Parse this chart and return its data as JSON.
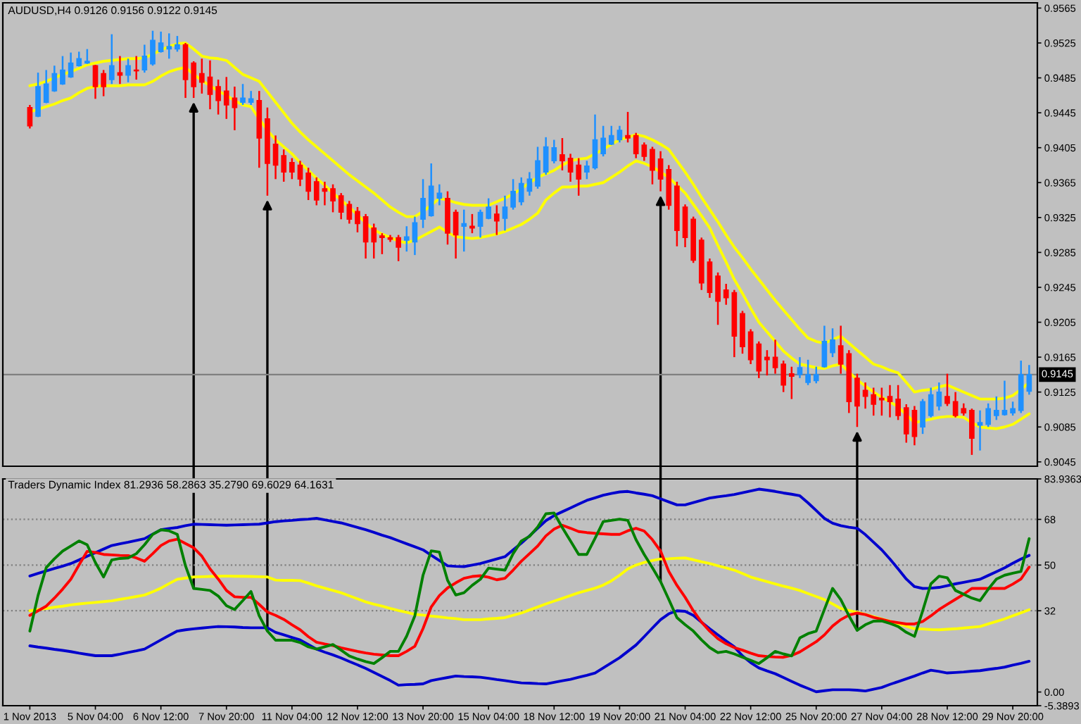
{
  "chart_data": [
    {
      "type": "candlestick",
      "title": "AUDUSD,H4 0.9126 0.9156 0.9122 0.9145",
      "categories": [
        null,
        null,
        null,
        null,
        null,
        null,
        null,
        null,
        null,
        null,
        null,
        null,
        null,
        null,
        null,
        null,
        null,
        null,
        null,
        null,
        null,
        null,
        null,
        null,
        null,
        null,
        null,
        null,
        null,
        null,
        null,
        null,
        null,
        null,
        null,
        null,
        null,
        null,
        null,
        null,
        null,
        null,
        null,
        null,
        null,
        null,
        null,
        null,
        null,
        null,
        null,
        null,
        null,
        null,
        null,
        null,
        null,
        null,
        null,
        null,
        null,
        null,
        null,
        null,
        null,
        null,
        null,
        null,
        null,
        null,
        null,
        null,
        null,
        null,
        null,
        null,
        null,
        null,
        null,
        null,
        null,
        null,
        null,
        null,
        null,
        null,
        null,
        null,
        null,
        null,
        null,
        null,
        null,
        null,
        null,
        null,
        null,
        null,
        null,
        null,
        null,
        null,
        null,
        null,
        null,
        null,
        null,
        null,
        null,
        null,
        null,
        null,
        null,
        null,
        null,
        null,
        null,
        null,
        null,
        null,
        null,
        null,
        null
      ],
      "ohlc": [
        [
          0.9451,
          0.9454,
          0.9427,
          0.943
        ],
        [
          0.9441,
          0.9491,
          0.944,
          0.9475
        ],
        [
          0.9457,
          0.9494,
          0.9456,
          0.9478
        ],
        [
          0.947,
          0.9499,
          0.9469,
          0.949
        ],
        [
          0.9478,
          0.951,
          0.9477,
          0.9494
        ],
        [
          0.9486,
          0.9514,
          0.9485,
          0.9502
        ],
        [
          0.9499,
          0.9515,
          0.9498,
          0.9507
        ],
        [
          0.9502,
          0.9518,
          0.9501,
          0.9504
        ],
        [
          0.9499,
          0.95,
          0.9461,
          0.9475
        ],
        [
          0.949,
          0.9494,
          0.9464,
          0.9475
        ],
        [
          0.9483,
          0.9535,
          0.9478,
          0.9499
        ],
        [
          0.9491,
          0.951,
          0.9478,
          0.9488
        ],
        [
          0.9488,
          0.9507,
          0.948,
          0.9499
        ],
        [
          0.9494,
          0.951,
          0.9483,
          0.9493
        ],
        [
          0.9494,
          0.9523,
          0.9491,
          0.951
        ],
        [
          0.9501,
          0.9539,
          0.9499,
          0.9528
        ],
        [
          0.9515,
          0.9538,
          0.9514,
          0.9525
        ],
        [
          0.9518,
          0.9536,
          0.9507,
          0.9521
        ],
        [
          0.9518,
          0.9533,
          0.9515,
          0.9523
        ],
        [
          0.9523,
          0.9525,
          0.9462,
          0.9483
        ],
        [
          0.9502,
          0.9504,
          0.9462,
          0.9475
        ],
        [
          0.949,
          0.9507,
          0.9467,
          0.948
        ],
        [
          0.9486,
          0.9505,
          0.9449,
          0.9466
        ],
        [
          0.9475,
          0.9483,
          0.9443,
          0.9459
        ],
        [
          0.947,
          0.9486,
          0.9438,
          0.9454
        ],
        [
          0.9462,
          0.9475,
          0.9425,
          0.9451
        ],
        [
          0.9457,
          0.9478,
          0.9454,
          0.9462
        ],
        [
          0.9457,
          0.947,
          0.9454,
          0.9461
        ],
        [
          0.9459,
          0.947,
          0.9382,
          0.9416
        ],
        [
          0.9438,
          0.9451,
          0.935,
          0.9387
        ],
        [
          0.9409,
          0.9419,
          0.9369,
          0.9385
        ],
        [
          0.9396,
          0.9403,
          0.9366,
          0.9377
        ],
        [
          0.9388,
          0.9393,
          0.9369,
          0.9377
        ],
        [
          0.9385,
          0.939,
          0.9361,
          0.9369
        ],
        [
          0.9376,
          0.9382,
          0.9345,
          0.9355
        ],
        [
          0.9366,
          0.9371,
          0.9339,
          0.9345
        ],
        [
          0.9358,
          0.9366,
          0.9339,
          0.9355
        ],
        [
          0.9358,
          0.9363,
          0.9331,
          0.9344
        ],
        [
          0.935,
          0.9353,
          0.9323,
          0.9331
        ],
        [
          0.934,
          0.9344,
          0.9318,
          0.9323
        ],
        [
          0.9332,
          0.9337,
          0.9308,
          0.9318
        ],
        [
          0.9326,
          0.9329,
          0.9278,
          0.9297
        ],
        [
          0.9313,
          0.9318,
          0.9278,
          0.9297
        ],
        [
          0.9304,
          0.9307,
          0.9283,
          0.9302
        ],
        [
          0.9302,
          0.9305,
          0.9297,
          0.93
        ],
        [
          0.9302,
          0.9305,
          0.9275,
          0.9291
        ],
        [
          0.9299,
          0.9315,
          0.9286,
          0.9303
        ],
        [
          0.9297,
          0.9326,
          0.9282,
          0.9319
        ],
        [
          0.9323,
          0.9369,
          0.9313,
          0.9347
        ],
        [
          0.9327,
          0.9387,
          0.9326,
          0.9361
        ],
        [
          0.9347,
          0.9363,
          0.9339,
          0.9353
        ],
        [
          0.9347,
          0.9355,
          0.9294,
          0.9307
        ],
        [
          0.9331,
          0.9334,
          0.9278,
          0.9305
        ],
        [
          0.9315,
          0.9334,
          0.9286,
          0.9318
        ],
        [
          0.9315,
          0.9329,
          0.9307,
          0.9313
        ],
        [
          0.9315,
          0.9334,
          0.9302,
          0.9331
        ],
        [
          0.9324,
          0.9347,
          0.9323,
          0.9337
        ],
        [
          0.9329,
          0.9339,
          0.9305,
          0.9321
        ],
        [
          0.9324,
          0.935,
          0.931,
          0.9337
        ],
        [
          0.9337,
          0.9369,
          0.9334,
          0.9355
        ],
        [
          0.9343,
          0.9371,
          0.9339,
          0.9364
        ],
        [
          0.9355,
          0.9377,
          0.935,
          0.9369
        ],
        [
          0.9361,
          0.9406,
          0.9358,
          0.939
        ],
        [
          0.9377,
          0.9417,
          0.9374,
          0.9406
        ],
        [
          0.939,
          0.9414,
          0.9387,
          0.9405
        ],
        [
          0.9397,
          0.9416,
          0.9379,
          0.939
        ],
        [
          0.9393,
          0.9398,
          0.9366,
          0.9377
        ],
        [
          0.9385,
          0.9393,
          0.935,
          0.9369
        ],
        [
          0.9377,
          0.939,
          0.9369,
          0.9384
        ],
        [
          0.9382,
          0.9443,
          0.938,
          0.9414
        ],
        [
          0.9398,
          0.943,
          0.9395,
          0.9416
        ],
        [
          0.9409,
          0.943,
          0.9408,
          0.9419
        ],
        [
          0.9414,
          0.943,
          0.9411,
          0.9425
        ],
        [
          0.9419,
          0.9446,
          0.9411,
          0.9416
        ],
        [
          0.9419,
          0.9422,
          0.9393,
          0.9398
        ],
        [
          0.9408,
          0.9411,
          0.939,
          0.9395
        ],
        [
          0.9403,
          0.9406,
          0.9363,
          0.9379
        ],
        [
          0.9392,
          0.9401,
          0.9355,
          0.9369
        ],
        [
          0.938,
          0.9385,
          0.9334,
          0.9339
        ],
        [
          0.9361,
          0.9366,
          0.9292,
          0.931
        ],
        [
          0.9337,
          0.934,
          0.9291,
          0.9302
        ],
        [
          0.9323,
          0.9326,
          0.9273,
          0.9276
        ],
        [
          0.9299,
          0.9302,
          0.9242,
          0.925
        ],
        [
          0.9274,
          0.9278,
          0.9233,
          0.9239
        ],
        [
          0.9258,
          0.9262,
          0.9202,
          0.9229
        ],
        [
          0.9242,
          0.9249,
          0.9225,
          0.9233
        ],
        [
          0.9239,
          0.9242,
          0.9165,
          0.9189
        ],
        [
          0.9215,
          0.9218,
          0.9169,
          0.9177
        ],
        [
          0.9194,
          0.9197,
          0.9157,
          0.9162
        ],
        [
          0.918,
          0.9183,
          0.9141,
          0.9149
        ],
        [
          0.9165,
          0.9173,
          0.9144,
          0.9162
        ],
        [
          0.9165,
          0.9185,
          0.9146,
          0.9153
        ],
        [
          0.9157,
          0.9161,
          0.9125,
          0.9133
        ],
        [
          0.9146,
          0.9154,
          0.9117,
          0.9143
        ],
        [
          0.9145,
          0.9165,
          0.9141,
          0.9153
        ],
        [
          0.9136,
          0.9162,
          0.9133,
          0.9145
        ],
        [
          0.9138,
          0.9154,
          0.9135,
          0.9145
        ],
        [
          0.9154,
          0.9201,
          0.9153,
          0.9183
        ],
        [
          0.917,
          0.9198,
          0.9165,
          0.9185
        ],
        [
          0.9178,
          0.9201,
          0.9146,
          0.9157
        ],
        [
          0.9169,
          0.9173,
          0.9101,
          0.9114
        ],
        [
          0.9141,
          0.9146,
          0.9085,
          0.9109
        ],
        [
          0.9127,
          0.9136,
          0.9106,
          0.912
        ],
        [
          0.9122,
          0.913,
          0.9098,
          0.9111
        ],
        [
          0.9118,
          0.913,
          0.9098,
          0.9116
        ],
        [
          0.912,
          0.9133,
          0.9096,
          0.9114
        ],
        [
          0.9117,
          0.9133,
          0.9093,
          0.9098
        ],
        [
          0.9107,
          0.9111,
          0.9067,
          0.9077
        ],
        [
          0.9104,
          0.9109,
          0.9064,
          0.9074
        ],
        [
          0.9085,
          0.9117,
          0.9077,
          0.9114
        ],
        [
          0.9098,
          0.913,
          0.9096,
          0.9122
        ],
        [
          0.9109,
          0.9136,
          0.9104,
          0.9125
        ],
        [
          0.912,
          0.9146,
          0.9109,
          0.9112
        ],
        [
          0.9114,
          0.9125,
          0.9096,
          0.9098
        ],
        [
          0.9106,
          0.9112,
          0.9098,
          0.9101
        ],
        [
          0.9104,
          0.9106,
          0.9053,
          0.9072
        ],
        [
          0.9087,
          0.9104,
          0.9058,
          0.909
        ],
        [
          0.9088,
          0.9112,
          0.9085,
          0.9106
        ],
        [
          0.9098,
          0.912,
          0.9093,
          0.9104
        ],
        [
          0.9099,
          0.9138,
          0.9098,
          0.9104
        ],
        [
          0.9101,
          0.9114,
          0.9098,
          0.9106
        ],
        [
          0.9104,
          0.9161,
          0.9101,
          0.9145
        ],
        [
          0.9126,
          0.9156,
          0.9122,
          0.9145
        ]
      ],
      "colors": [
        "#ff0000",
        "#1e90ff",
        "#1e90ff",
        "#1e90ff",
        "#1e90ff",
        "#1e90ff",
        "#1e90ff",
        "#1e90ff",
        "#ff0000",
        "#ff0000",
        "#1e90ff",
        "#ff0000",
        "#1e90ff",
        "#ff0000",
        "#1e90ff",
        "#1e90ff",
        "#1e90ff",
        "#1e90ff",
        "#1e90ff",
        "#ff0000",
        "#ff0000",
        "#ff0000",
        "#ff0000",
        "#ff0000",
        "#ff0000",
        "#ff0000",
        "#1e90ff",
        "#1e90ff",
        "#ff0000",
        "#ff0000",
        "#ff0000",
        "#ff0000",
        "#ff0000",
        "#ff0000",
        "#ff0000",
        "#ff0000",
        "#ff0000",
        "#ff0000",
        "#ff0000",
        "#ff0000",
        "#ff0000",
        "#ff0000",
        "#ff0000",
        "#ff0000",
        "#ff0000",
        "#ff0000",
        "#1e90ff",
        "#1e90ff",
        "#1e90ff",
        "#1e90ff",
        "#1e90ff",
        "#ff0000",
        "#ff0000",
        "#1e90ff",
        "#ff0000",
        "#1e90ff",
        "#1e90ff",
        "#ff0000",
        "#1e90ff",
        "#1e90ff",
        "#1e90ff",
        "#1e90ff",
        "#1e90ff",
        "#1e90ff",
        "#1e90ff",
        "#ff0000",
        "#ff0000",
        "#ff0000",
        "#1e90ff",
        "#1e90ff",
        "#1e90ff",
        "#1e90ff",
        "#1e90ff",
        "#ff0000",
        "#ff0000",
        "#ff0000",
        "#ff0000",
        "#ff0000",
        "#ff0000",
        "#ff0000",
        "#ff0000",
        "#ff0000",
        "#ff0000",
        "#ff0000",
        "#ff0000",
        "#ff0000",
        "#ff0000",
        "#ff0000",
        "#ff0000",
        "#ff0000",
        "#ff0000",
        "#ff0000",
        "#ff0000",
        "#ff0000",
        "#1e90ff",
        "#1e90ff",
        "#1e90ff",
        "#1e90ff",
        "#1e90ff",
        "#ff0000",
        "#ff0000",
        "#ff0000",
        "#ff0000",
        "#ff0000",
        "#ff0000",
        "#ff0000",
        "#ff0000",
        "#ff0000",
        "#ff0000",
        "#1e90ff",
        "#1e90ff",
        "#1e90ff",
        "#ff0000",
        "#ff0000",
        "#ff0000",
        "#ff0000",
        "#1e90ff",
        "#1e90ff",
        "#1e90ff",
        "#1e90ff",
        "#1e90ff",
        "#1e90ff",
        "#1e90ff"
      ],
      "series": [
        {
          "type": "line",
          "color": "#ffff00",
          "values": [
            0.9476,
            0.9478,
            0.9481,
            0.9485,
            0.9489,
            0.9492,
            0.9496,
            0.95,
            0.9502,
            0.9504,
            0.9505,
            0.9506,
            0.9507,
            0.9507,
            0.9508,
            0.9512,
            0.9517,
            0.9521,
            0.9524,
            0.9525,
            0.9518,
            0.951,
            0.9508,
            0.9507,
            0.9505,
            0.9497,
            0.9489,
            0.9485,
            0.9481,
            0.9469,
            0.9457,
            0.9445,
            0.9433,
            0.9423,
            0.9414,
            0.9406,
            0.9398,
            0.939,
            0.9382,
            0.9374,
            0.9367,
            0.936,
            0.9353,
            0.9345,
            0.9337,
            0.9331,
            0.9326,
            0.9326,
            0.9332,
            0.9339,
            0.9347,
            0.9345,
            0.9342,
            0.934,
            0.9339,
            0.9339,
            0.9339,
            0.9343,
            0.9347,
            0.9352,
            0.9358,
            0.9365,
            0.9371,
            0.9375,
            0.9379,
            0.9385,
            0.939,
            0.9392,
            0.9393,
            0.9398,
            0.9403,
            0.9409,
            0.9414,
            0.9417,
            0.942,
            0.9418,
            0.9414,
            0.9409,
            0.9403,
            0.939,
            0.9377,
            0.9363,
            0.9348,
            0.9334,
            0.932,
            0.9305,
            0.9291,
            0.9279,
            0.9266,
            0.9254,
            0.9242,
            0.923,
            0.9219,
            0.9208,
            0.9197,
            0.9187,
            0.9183,
            0.9181,
            0.9185,
            0.9189,
            0.9181,
            0.9173,
            0.9165,
            0.9157,
            0.9154,
            0.915,
            0.9147,
            0.9136,
            0.9125,
            0.9127,
            0.9128,
            0.9131,
            0.9133,
            0.9129,
            0.9125,
            0.9121,
            0.9117,
            0.9117,
            0.9117,
            0.9118,
            0.9121,
            0.9128,
            0.9136
          ]
        },
        {
          "type": "line",
          "color": "#ffff00",
          "values": [
            0.9446,
            0.9449,
            0.9452,
            0.9455,
            0.9459,
            0.9462,
            0.9468,
            0.9473,
            0.9475,
            0.9476,
            0.9476,
            0.9476,
            0.9477,
            0.9477,
            0.9477,
            0.9481,
            0.9487,
            0.9492,
            0.9495,
            0.9497,
            0.9489,
            0.9482,
            0.9476,
            0.947,
            0.9465,
            0.9459,
            0.9454,
            0.9452,
            0.9438,
            0.9425,
            0.9414,
            0.9406,
            0.9398,
            0.9388,
            0.9379,
            0.937,
            0.9362,
            0.9353,
            0.9345,
            0.9337,
            0.9328,
            0.9319,
            0.9311,
            0.9306,
            0.9302,
            0.9298,
            0.9296,
            0.9299,
            0.9304,
            0.9309,
            0.9314,
            0.9308,
            0.9303,
            0.9302,
            0.9301,
            0.9302,
            0.9304,
            0.9306,
            0.9309,
            0.9313,
            0.9317,
            0.9323,
            0.933,
            0.9345,
            0.9353,
            0.936,
            0.936,
            0.9361,
            0.9361,
            0.9363,
            0.9365,
            0.9371,
            0.9377,
            0.9384,
            0.939,
            0.9387,
            0.9383,
            0.9377,
            0.9371,
            0.9362,
            0.9353,
            0.934,
            0.9327,
            0.9313,
            0.9293,
            0.9274,
            0.9254,
            0.9238,
            0.9221,
            0.9205,
            0.9194,
            0.9183,
            0.9172,
            0.9164,
            0.9157,
            0.9155,
            0.9153,
            0.9152,
            0.9155,
            0.9157,
            0.9148,
            0.9139,
            0.9132,
            0.9125,
            0.9119,
            0.9114,
            0.9108,
            0.9099,
            0.909,
            0.9092,
            0.9094,
            0.9096,
            0.9097,
            0.9097,
            0.9096,
            0.909,
            0.9085,
            0.9084,
            0.9083,
            0.9085,
            0.9088,
            0.9094,
            0.91
          ]
        }
      ],
      "ylim": [
        0.904,
        0.9571
      ],
      "yticks": [
        0.9565,
        0.9525,
        0.9485,
        0.9445,
        0.9405,
        0.9365,
        0.9325,
        0.9285,
        0.9245,
        0.9205,
        0.9165,
        0.9125,
        0.9085,
        0.9045
      ],
      "ref_lines": [
        {
          "axis": "y",
          "value": 0.9145,
          "label": "0.9145",
          "color": "#808080",
          "line_style": "solid"
        }
      ],
      "tick_labels": "y"
    },
    {
      "type": "line",
      "title": "Traders Dynamic Index 81.2936 58.2863 35.2790 69.6029 64.1631",
      "categories": [
        "1 Nov 2013",
        null,
        null,
        null,
        null,
        null,
        null,
        null,
        "5 Nov 04:00",
        null,
        null,
        null,
        null,
        null,
        null,
        null,
        "6 Nov 12:00",
        null,
        null,
        null,
        null,
        null,
        null,
        null,
        "7 Nov 20:00",
        null,
        null,
        null,
        null,
        null,
        null,
        null,
        "11 Nov 04:00",
        null,
        null,
        null,
        null,
        null,
        null,
        null,
        "12 Nov 12:00",
        null,
        null,
        null,
        null,
        null,
        null,
        null,
        "13 Nov 20:00",
        null,
        null,
        null,
        null,
        null,
        null,
        null,
        "15 Nov 04:00",
        null,
        null,
        null,
        null,
        null,
        null,
        null,
        "18 Nov 12:00",
        null,
        null,
        null,
        null,
        null,
        null,
        null,
        "19 Nov 20:00",
        null,
        null,
        null,
        null,
        null,
        null,
        null,
        "21 Nov 04:00",
        null,
        null,
        null,
        null,
        null,
        null,
        null,
        "22 Nov 12:00",
        null,
        null,
        null,
        null,
        null,
        null,
        null,
        "25 Nov 20:00",
        null,
        null,
        null,
        null,
        null,
        null,
        null,
        "27 Nov 04:00",
        null,
        null,
        null,
        null,
        null,
        null,
        null,
        "28 Nov 12:00",
        null,
        null,
        null,
        null,
        null,
        null,
        null,
        "29 Nov 20:00",
        null,
        null
      ],
      "series": [
        {
          "type": "line",
          "color": "#0000cd",
          "values": [
            45.7,
            46.7,
            47.7,
            48.7,
            49.6,
            50.6,
            52.0,
            53.5,
            54.9,
            56.3,
            57.7,
            58.4,
            59.0,
            59.7,
            60.4,
            62.2,
            63.9,
            64.4,
            64.8,
            65.5,
            66.1,
            66.0,
            65.9,
            65.8,
            65.7,
            65.8,
            65.9,
            66.0,
            66.1,
            66.6,
            67.1,
            67.4,
            67.6,
            67.9,
            68.1,
            68.4,
            67.8,
            67.2,
            66.6,
            65.7,
            64.8,
            63.9,
            62.9,
            61.8,
            60.8,
            59.6,
            58.4,
            57.2,
            56.0,
            53.9,
            51.8,
            49.7,
            49.5,
            49.4,
            50.0,
            50.6,
            51.5,
            52.4,
            53.3,
            56.0,
            58.6,
            61.5,
            64.5,
            67.5,
            69.5,
            71.0,
            72.5,
            74.0,
            75.5,
            76.5,
            77.5,
            78.2,
            78.8,
            79.0,
            78.4,
            77.9,
            77.3,
            76.1,
            74.9,
            73.7,
            73.7,
            74.6,
            75.5,
            76.4,
            76.9,
            77.3,
            77.8,
            78.5,
            79.2,
            79.9,
            79.5,
            79.0,
            78.4,
            77.9,
            77.3,
            74.5,
            71.5,
            68.4,
            66.5,
            65.5,
            64.9,
            64.5,
            62.0,
            59.0,
            56.0,
            52.4,
            48.5,
            44.5,
            41.5,
            40.8,
            40.9,
            41.2,
            41.9,
            42.6,
            43.2,
            43.8,
            44.4,
            45.9,
            47.4,
            48.9,
            50.7,
            52.4,
            53.8
          ]
        },
        {
          "type": "line",
          "color": "#0000cd",
          "values": [
            18.2,
            17.7,
            17.3,
            16.8,
            16.4,
            15.9,
            15.3,
            14.8,
            14.3,
            14.3,
            14.3,
            14.9,
            15.6,
            16.2,
            16.9,
            18.7,
            20.5,
            22.3,
            24.0,
            24.5,
            24.9,
            25.2,
            25.5,
            25.8,
            25.7,
            25.6,
            25.4,
            25.3,
            25.3,
            25.3,
            23.5,
            22.5,
            21.5,
            20.5,
            18.7,
            16.9,
            15.7,
            14.6,
            13.4,
            12.0,
            10.7,
            9.3,
            7.7,
            6.1,
            4.5,
            2.7,
            2.9,
            3.0,
            3.2,
            4.5,
            5.1,
            5.7,
            6.3,
            6.1,
            6.0,
            5.8,
            5.4,
            4.9,
            4.5,
            4.0,
            3.6,
            3.5,
            3.3,
            3.2,
            3.8,
            4.4,
            5.0,
            5.8,
            6.6,
            7.5,
            9.5,
            11.5,
            13.5,
            16.0,
            18.5,
            21.8,
            25.2,
            28.5,
            30.8,
            32.0,
            31.8,
            30.2,
            27.5,
            24.9,
            22.5,
            20.1,
            17.8,
            14.2,
            11.6,
            9.5,
            8.3,
            7.2,
            5.7,
            4.2,
            2.7,
            1.4,
            0.1,
            0.5,
            0.9,
            0.9,
            0.9,
            0.7,
            0.4,
            1.1,
            1.8,
            3.0,
            4.1,
            5.2,
            6.3,
            7.5,
            8.6,
            8.1,
            7.5,
            7.7,
            7.9,
            8.2,
            8.4,
            8.9,
            9.3,
            9.8,
            10.6,
            11.3,
            12.1
          ]
        },
        {
          "type": "line",
          "color": "#ffff00",
          "values": [
            32.0,
            32.5,
            32.9,
            33.4,
            33.8,
            34.3,
            34.7,
            35.0,
            35.3,
            35.6,
            35.9,
            36.5,
            37.0,
            37.6,
            38.2,
            39.5,
            40.9,
            42.7,
            44.4,
            44.9,
            45.3,
            45.4,
            45.5,
            45.6,
            45.7,
            45.6,
            45.6,
            45.5,
            45.4,
            45.3,
            44.1,
            44.0,
            44.0,
            43.9,
            42.9,
            41.8,
            40.9,
            40.0,
            39.1,
            37.9,
            36.7,
            35.5,
            34.6,
            33.8,
            32.9,
            32.1,
            31.4,
            30.6,
            30.3,
            29.9,
            29.6,
            29.2,
            28.9,
            28.5,
            28.5,
            28.5,
            28.8,
            29.0,
            29.3,
            30.2,
            31.1,
            32.3,
            33.5,
            34.7,
            35.8,
            36.9,
            38.0,
            39.1,
            40.0,
            40.9,
            42.1,
            43.8,
            46.0,
            48.5,
            50.0,
            51.0,
            51.8,
            52.4,
            52.5,
            52.7,
            52.8,
            52.1,
            51.3,
            50.6,
            49.7,
            48.9,
            48.0,
            46.7,
            45.3,
            44.4,
            43.5,
            42.6,
            41.7,
            40.9,
            40.0,
            38.8,
            37.6,
            36.4,
            34.7,
            32.9,
            32.1,
            31.4,
            30.6,
            29.7,
            28.8,
            27.9,
            26.9,
            25.9,
            24.9,
            24.8,
            24.6,
            24.5,
            24.7,
            24.9,
            25.2,
            25.5,
            25.8,
            26.8,
            27.8,
            28.8,
            30.0,
            31.2,
            32.4
          ]
        },
        {
          "type": "line",
          "color": "#ff0000",
          "values": [
            30.2,
            32.0,
            33.8,
            37.0,
            40.5,
            44.4,
            50.0,
            55.4,
            55.0,
            54.2,
            54.0,
            53.8,
            53.7,
            52.8,
            51.5,
            54.5,
            57.7,
            59.5,
            60.2,
            58.5,
            56.8,
            53.5,
            48.5,
            44.5,
            40.0,
            37.5,
            37.3,
            37.3,
            34.5,
            31.5,
            30.2,
            28.6,
            26.5,
            24.5,
            21.8,
            19.6,
            18.9,
            18.3,
            17.4,
            16.7,
            16.0,
            15.4,
            14.9,
            14.6,
            14.3,
            14.3,
            16.0,
            18.0,
            25.0,
            33.5,
            38.0,
            41.0,
            43.0,
            44.8,
            45.5,
            45.8,
            45.2,
            44.2,
            44.8,
            48.0,
            51.5,
            54.5,
            57.5,
            61.5,
            64.2,
            65.7,
            64.5,
            63.2,
            62.8,
            62.5,
            62.3,
            62.1,
            62.1,
            63.5,
            64.5,
            63.4,
            60.0,
            55.5,
            47.5,
            42.0,
            37.3,
            32.0,
            27.5,
            24.0,
            21.0,
            19.0,
            17.5,
            16.5,
            15.3,
            14.3,
            14.0,
            13.8,
            13.7,
            14.4,
            15.8,
            17.8,
            19.8,
            22.5,
            26.0,
            28.5,
            30.3,
            31.1,
            30.5,
            29.4,
            28.6,
            27.8,
            27.3,
            26.8,
            26.8,
            27.8,
            30.0,
            32.5,
            34.5,
            36.5,
            38.5,
            40.8,
            40.8,
            40.8,
            40.8,
            40.8,
            42.5,
            44.5,
            49.2
          ]
        },
        {
          "type": "line",
          "color": "#008000",
          "values": [
            24.0,
            38.0,
            49.0,
            52.5,
            55.5,
            57.5,
            59.5,
            58.0,
            51.0,
            45.3,
            52.0,
            52.6,
            52.8,
            54.5,
            58.0,
            62.1,
            63.9,
            63.5,
            62.1,
            49.7,
            40.8,
            40.4,
            40.0,
            37.8,
            34.0,
            32.5,
            36.0,
            39.6,
            30.0,
            24.0,
            20.4,
            20.4,
            20.4,
            19.5,
            17.8,
            16.9,
            17.8,
            18.7,
            16.5,
            14.2,
            13.0,
            12.0,
            11.2,
            13.5,
            16.0,
            16.0,
            22.0,
            30.0,
            46.0,
            55.6,
            55.1,
            44.0,
            38.2,
            39.1,
            42.0,
            44.4,
            48.8,
            48.4,
            48.0,
            54.5,
            59.5,
            61.3,
            65.0,
            70.2,
            70.5,
            64.8,
            59.5,
            54.2,
            54.2,
            60.5,
            67.1,
            67.6,
            68.1,
            67.6,
            60.0,
            54.2,
            49.0,
            43.5,
            36.5,
            29.3,
            26.5,
            24.0,
            20.5,
            17.5,
            15.5,
            16.0,
            15.0,
            13.7,
            12.5,
            11.2,
            13.5,
            16.0,
            15.0,
            14.2,
            21.3,
            23.0,
            24.0,
            32.5,
            40.8,
            36.4,
            30.0,
            24.3,
            26.5,
            27.9,
            28.0,
            27.0,
            25.8,
            23.5,
            21.9,
            32.0,
            42.6,
            45.6,
            45.0,
            40.0,
            38.5,
            37.0,
            36.0,
            40.5,
            44.5,
            46.0,
            46.8,
            47.5,
            60.4
          ]
        }
      ],
      "ylim": [
        -5.3893,
        83.9363
      ],
      "yticks": [
        {
          "value": 83.9363,
          "label": "83.9363"
        },
        68,
        50,
        32,
        {
          "value": 0,
          "label": "0.00"
        },
        {
          "value": -5.3893,
          "label": "-5.3893"
        }
      ],
      "ref_lines": [
        {
          "axis": "y",
          "value": 68,
          "color": "#808080",
          "line_style": "dotted"
        },
        {
          "axis": "y",
          "value": 50,
          "color": "#808080",
          "line_style": "dotted"
        },
        {
          "axis": "y",
          "value": 32,
          "color": "#808080",
          "line_style": "dotted"
        }
      ]
    }
  ]
}
